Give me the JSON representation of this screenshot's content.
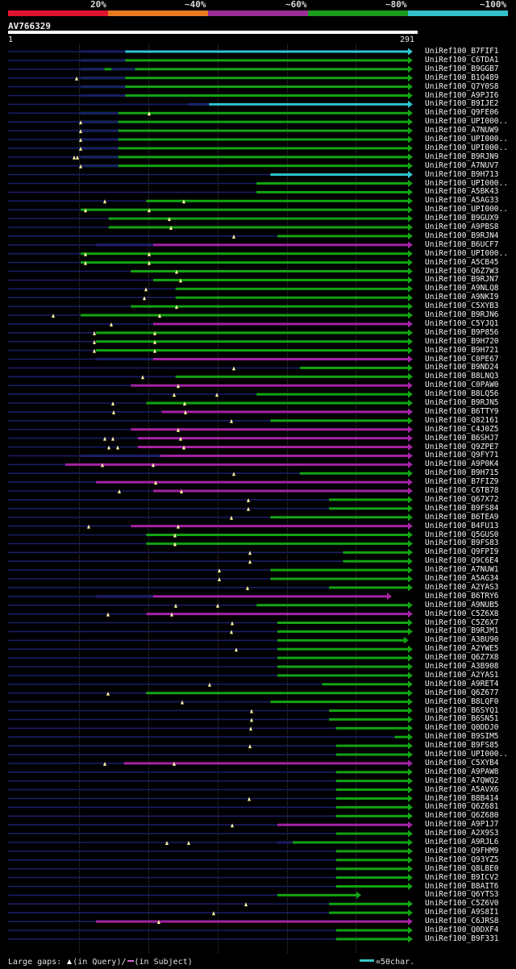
{
  "identity_scale": [
    {
      "label": "20%",
      "color": "#e0142e"
    },
    {
      "label": "~40%",
      "color": "#e87a1f"
    },
    {
      "label": "~60%",
      "color": "#9b2c96"
    },
    {
      "label": "~80%",
      "color": "#1c9a1c"
    },
    {
      "label": "~100%",
      "color": "#32c2c8"
    }
  ],
  "query": {
    "name": "AV766329",
    "start": "1",
    "end": "291",
    "length": 291
  },
  "colors": {
    "cyan": "#2fc4cf",
    "green": "#12a412",
    "magenta": "#a423a4",
    "query_line": "#191d66",
    "marker": "#fff6a0"
  },
  "hits": [
    {
      "label": "UniRef100_B7FIF1",
      "c": "cyan",
      "s": 53,
      "e": 291,
      "g": [
        [
          53,
          85
        ]
      ],
      "m": []
    },
    {
      "label": "UniRef100_C6TDA1",
      "c": "green",
      "s": 53,
      "e": 291,
      "g": [
        [
          53,
          85
        ]
      ],
      "m": []
    },
    {
      "label": "UniRef100_B9GGB7",
      "c": "green",
      "s": 53,
      "e": 291,
      "g": [
        [
          53,
          70
        ],
        [
          75,
          92
        ]
      ],
      "m": []
    },
    {
      "label": "UniRef100_B1Q489",
      "c": "green",
      "s": 53,
      "e": 291,
      "g": [
        [
          53,
          85
        ]
      ],
      "m": [
        95
      ]
    },
    {
      "label": "UniRef100_Q7Y0S8",
      "c": "green",
      "s": 53,
      "e": 291,
      "g": [
        [
          53,
          85
        ]
      ],
      "m": []
    },
    {
      "label": "UniRef100_A9PJI6",
      "c": "green",
      "s": 53,
      "e": 291,
      "g": [
        [
          53,
          85
        ]
      ],
      "m": []
    },
    {
      "label": "UniRef100_B9IJE2",
      "c": "cyan",
      "s": 130,
      "e": 291,
      "g": [
        [
          130,
          145
        ]
      ],
      "m": []
    },
    {
      "label": "UniRef100_Q9FE06",
      "c": "green",
      "s": 53,
      "e": 291,
      "g": [
        [
          53,
          80
        ]
      ],
      "m": [
        185
      ]
    },
    {
      "label": "UniRef100_UPI000..",
      "c": "green",
      "s": 53,
      "e": 291,
      "g": [
        [
          53,
          80
        ]
      ],
      "m": [
        100
      ]
    },
    {
      "label": "UniRef100_A7NUW9",
      "c": "green",
      "s": 53,
      "e": 291,
      "g": [
        [
          53,
          80
        ]
      ],
      "m": [
        100
      ]
    },
    {
      "label": "UniRef100_UPI000..",
      "c": "green",
      "s": 53,
      "e": 291,
      "g": [
        [
          53,
          80
        ]
      ],
      "m": [
        100
      ]
    },
    {
      "label": "UniRef100_UPI000..",
      "c": "green",
      "s": 53,
      "e": 291,
      "g": [
        [
          53,
          80
        ]
      ],
      "m": [
        100
      ]
    },
    {
      "label": "UniRef100_B9RJN9",
      "c": "green",
      "s": 53,
      "e": 291,
      "g": [
        [
          53,
          80
        ]
      ],
      "m": [
        92,
        96
      ]
    },
    {
      "label": "UniRef100_A7NUV7",
      "c": "green",
      "s": 53,
      "e": 291,
      "g": [
        [
          53,
          80
        ]
      ],
      "m": [
        100
      ]
    },
    {
      "label": "UniRef100_B9H713",
      "c": "cyan",
      "s": 189,
      "e": 291,
      "g": [],
      "m": []
    },
    {
      "label": "UniRef100_UPI000..",
      "c": "green",
      "s": 179,
      "e": 291,
      "g": [],
      "m": []
    },
    {
      "label": "UniRef100_A5BK43",
      "c": "green",
      "s": 179,
      "e": 291,
      "g": [],
      "m": []
    },
    {
      "label": "UniRef100_A5AG33",
      "c": "green",
      "s": 100,
      "e": 291,
      "g": [],
      "m": [
        130,
        228
      ]
    },
    {
      "label": "UniRef100_UPI000..",
      "c": "green",
      "s": 53,
      "e": 291,
      "g": [],
      "m": [
        106,
        185
      ]
    },
    {
      "label": "UniRef100_B9GUX9",
      "c": "green",
      "s": 73,
      "e": 291,
      "g": [],
      "m": [
        210
      ]
    },
    {
      "label": "UniRef100_A9PBS8",
      "c": "green",
      "s": 73,
      "e": 291,
      "g": [],
      "m": [
        212
      ]
    },
    {
      "label": "UniRef100_B9RJN4",
      "c": "green",
      "s": 194,
      "e": 291,
      "g": [],
      "m": [
        290
      ]
    },
    {
      "label": "UniRef100_B6UCF7",
      "c": "magenta",
      "s": 64,
      "e": 291,
      "g": [
        [
          64,
          105
        ]
      ],
      "m": []
    },
    {
      "label": "UniRef100_UPI000..",
      "c": "green",
      "s": 53,
      "e": 291,
      "g": [],
      "m": [
        106,
        185
      ]
    },
    {
      "label": "UniRef100_A5CB45",
      "c": "green",
      "s": 53,
      "e": 291,
      "g": [],
      "m": [
        106,
        185
      ]
    },
    {
      "label": "UniRef100_Q6Z7W3",
      "c": "green",
      "s": 89,
      "e": 291,
      "g": [],
      "m": [
        219
      ]
    },
    {
      "label": "UniRef100_B9RJN7",
      "c": "green",
      "s": 105,
      "e": 291,
      "g": [],
      "m": [
        224
      ]
    },
    {
      "label": "UniRef100_A9NLQ8",
      "c": "green",
      "s": 121,
      "e": 291,
      "g": [],
      "m": [
        181
      ]
    },
    {
      "label": "UniRef100_A9NKI9",
      "c": "green",
      "s": 121,
      "e": 291,
      "g": [],
      "m": [
        179
      ]
    },
    {
      "label": "UniRef100_C5XYB3",
      "c": "green",
      "s": 89,
      "e": 291,
      "g": [],
      "m": [
        219
      ]
    },
    {
      "label": "UniRef100_B9RJN6",
      "c": "green",
      "s": 53,
      "e": 291,
      "g": [],
      "m": [
        66,
        198
      ]
    },
    {
      "label": "UniRef100_C5YJQ1",
      "c": "magenta",
      "s": 105,
      "e": 291,
      "g": [],
      "m": [
        138
      ]
    },
    {
      "label": "UniRef100_B9P856",
      "c": "green",
      "s": 64,
      "e": 291,
      "g": [],
      "m": [
        117,
        192
      ]
    },
    {
      "label": "UniRef100_B9H720",
      "c": "green",
      "s": 64,
      "e": 291,
      "g": [],
      "m": [
        117,
        192
      ]
    },
    {
      "label": "UniRef100_B9H721",
      "c": "green",
      "s": 64,
      "e": 291,
      "g": [],
      "m": [
        117,
        192
      ]
    },
    {
      "label": "UniRef100_C0PE67",
      "c": "magenta",
      "s": 64,
      "e": 291,
      "g": [
        [
          64,
          105
        ]
      ],
      "m": []
    },
    {
      "label": "UniRef100_B9ND24",
      "c": "green",
      "s": 210,
      "e": 291,
      "g": [],
      "m": [
        290
      ]
    },
    {
      "label": "UniRef100_B8LNQ3",
      "c": "green",
      "s": 121,
      "e": 291,
      "g": [],
      "m": [
        177
      ]
    },
    {
      "label": "UniRef100_C0PAW0",
      "c": "magenta",
      "s": 89,
      "e": 291,
      "g": [],
      "m": [
        221
      ]
    },
    {
      "label": "UniRef100_B8LQ56",
      "c": "green",
      "s": 179,
      "e": 291,
      "g": [],
      "m": [
        216,
        269
      ]
    },
    {
      "label": "UniRef100_B9RJN5",
      "c": "green",
      "s": 100,
      "e": 291,
      "g": [],
      "m": [
        140,
        229
      ]
    },
    {
      "label": "UniRef100_B6TTY9",
      "c": "magenta",
      "s": 111,
      "e": 291,
      "g": [],
      "m": [
        141,
        230
      ]
    },
    {
      "label": "UniRef100_Q82161",
      "c": "green",
      "s": 189,
      "e": 291,
      "g": [],
      "m": [
        287
      ]
    },
    {
      "label": "UniRef100_C4J0Z5",
      "c": "magenta",
      "s": 89,
      "e": 291,
      "g": [],
      "m": [
        221
      ]
    },
    {
      "label": "UniRef100_B6SHJ7",
      "c": "magenta",
      "s": 94,
      "e": 291,
      "g": [],
      "m": [
        130,
        140,
        224
      ]
    },
    {
      "label": "UniRef100_Q9ZPE7",
      "c": "magenta",
      "s": 94,
      "e": 291,
      "g": [],
      "m": [
        135,
        146,
        228
      ]
    },
    {
      "label": "UniRef100_Q9FY71",
      "c": "magenta",
      "s": 53,
      "e": 291,
      "g": [
        [
          53,
          110
        ]
      ],
      "m": []
    },
    {
      "label": "UniRef100_A9P0K4",
      "c": "magenta",
      "s": 42,
      "e": 291,
      "g": [],
      "m": [
        127,
        190
      ]
    },
    {
      "label": "UniRef100_B9H715",
      "c": "green",
      "s": 210,
      "e": 291,
      "g": [],
      "m": [
        290
      ]
    },
    {
      "label": "UniRef100_B7FIZ9",
      "c": "magenta",
      "s": 64,
      "e": 291,
      "g": [],
      "m": [
        193
      ]
    },
    {
      "label": "UniRef100_C6TB78",
      "c": "magenta",
      "s": 105,
      "e": 291,
      "g": [],
      "m": [
        148,
        225
      ]
    },
    {
      "label": "UniRef100_Q67X72",
      "c": "green",
      "s": 231,
      "e": 291,
      "g": [],
      "m": [
        308
      ]
    },
    {
      "label": "UniRef100_B9FS84",
      "c": "green",
      "s": 231,
      "e": 291,
      "g": [],
      "m": [
        308
      ]
    },
    {
      "label": "UniRef100_B6TEA9",
      "c": "green",
      "s": 189,
      "e": 291,
      "g": [],
      "m": [
        287
      ]
    },
    {
      "label": "UniRef100_B4FU13",
      "c": "magenta",
      "s": 89,
      "e": 291,
      "g": [],
      "m": [
        110,
        221
      ]
    },
    {
      "label": "UniRef100_Q5GUS0",
      "c": "green",
      "s": 100,
      "e": 291,
      "g": [],
      "m": [
        217
      ]
    },
    {
      "label": "UniRef100_B9FS83",
      "c": "green",
      "s": 100,
      "e": 291,
      "g": [],
      "m": [
        217
      ]
    },
    {
      "label": "UniRef100_Q9FPI9",
      "c": "green",
      "s": 241,
      "e": 291,
      "g": [],
      "m": [
        310
      ]
    },
    {
      "label": "UniRef100_Q9C6E4",
      "c": "green",
      "s": 241,
      "e": 291,
      "g": [],
      "m": [
        310
      ]
    },
    {
      "label": "UniRef100_A7NUW1",
      "c": "green",
      "s": 189,
      "e": 291,
      "g": [],
      "m": [
        272
      ]
    },
    {
      "label": "UniRef100_A5AG34",
      "c": "green",
      "s": 189,
      "e": 291,
      "g": [],
      "m": [
        272
      ]
    },
    {
      "label": "UniRef100_A2YAS3",
      "c": "green",
      "s": 231,
      "e": 291,
      "g": [],
      "m": [
        307
      ]
    },
    {
      "label": "UniRef100_B6TRY6",
      "c": "magenta",
      "s": 64,
      "e": 276,
      "g": [
        [
          64,
          105
        ]
      ],
      "m": []
    },
    {
      "label": "UniRef100_A9NUB5",
      "c": "green",
      "s": 179,
      "e": 291,
      "g": [],
      "m": [
        218,
        270
      ]
    },
    {
      "label": "UniRef100_C5Z6X8",
      "c": "magenta",
      "s": 100,
      "e": 291,
      "g": [],
      "m": [
        134,
        213
      ]
    },
    {
      "label": "UniRef100_C5Z6X7",
      "c": "green",
      "s": 194,
      "e": 291,
      "g": [],
      "m": [
        288
      ]
    },
    {
      "label": "UniRef100_B9RJM1",
      "c": "green",
      "s": 194,
      "e": 291,
      "g": [],
      "m": [
        287
      ]
    },
    {
      "label": "UniRef100_A3BU90",
      "c": "green",
      "s": 194,
      "e": 288,
      "g": [],
      "m": []
    },
    {
      "label": "UniRef100_A2YWE5",
      "c": "green",
      "s": 194,
      "e": 291,
      "g": [],
      "m": [
        293
      ]
    },
    {
      "label": "UniRef100_Q6Z7X8",
      "c": "green",
      "s": 194,
      "e": 291,
      "g": [],
      "m": []
    },
    {
      "label": "UniRef100_A3B908",
      "c": "green",
      "s": 194,
      "e": 291,
      "g": [],
      "m": []
    },
    {
      "label": "UniRef100_A2YAS1",
      "c": "green",
      "s": 194,
      "e": 291,
      "g": [],
      "m": []
    },
    {
      "label": "UniRef100_A9RET4",
      "c": "green",
      "s": 226,
      "e": 291,
      "g": [],
      "m": [
        260
      ]
    },
    {
      "label": "UniRef100_Q6Z677",
      "c": "green",
      "s": 100,
      "e": 291,
      "g": [],
      "m": [
        134
      ]
    },
    {
      "label": "UniRef100_B8LQF0",
      "c": "green",
      "s": 189,
      "e": 291,
      "g": [],
      "m": [
        226
      ]
    },
    {
      "label": "UniRef100_B6SYQ1",
      "c": "green",
      "s": 231,
      "e": 291,
      "g": [],
      "m": [
        312
      ]
    },
    {
      "label": "UniRef100_B6SN51",
      "c": "green",
      "s": 231,
      "e": 291,
      "g": [],
      "m": [
        312
      ]
    },
    {
      "label": "UniRef100_Q0DDJ0",
      "c": "green",
      "s": 236,
      "e": 291,
      "g": [],
      "m": [
        311
      ]
    },
    {
      "label": "UniRef100_B9SIM5",
      "c": "green",
      "s": 278,
      "e": 291,
      "g": [],
      "m": []
    },
    {
      "label": "UniRef100_B9FS85",
      "c": "green",
      "s": 236,
      "e": 291,
      "g": [],
      "m": [
        310
      ]
    },
    {
      "label": "UniRef100_UPI000..",
      "c": "green",
      "s": 236,
      "e": 291,
      "g": [],
      "m": []
    },
    {
      "label": "UniRef100_C5XYB4",
      "c": "magenta",
      "s": 84,
      "e": 291,
      "g": [],
      "m": [
        130,
        216
      ]
    },
    {
      "label": "UniRef100_A9PAW8",
      "c": "green",
      "s": 236,
      "e": 291,
      "g": [],
      "m": []
    },
    {
      "label": "UniRef100_A7QWQ2",
      "c": "green",
      "s": 236,
      "e": 291,
      "g": [],
      "m": []
    },
    {
      "label": "UniRef100_A5AVX6",
      "c": "green",
      "s": 236,
      "e": 291,
      "g": [],
      "m": []
    },
    {
      "label": "UniRef100_B8B414",
      "c": "green",
      "s": 236,
      "e": 291,
      "g": [],
      "m": [
        309
      ]
    },
    {
      "label": "UniRef100_Q6Z681",
      "c": "green",
      "s": 236,
      "e": 291,
      "g": [],
      "m": []
    },
    {
      "label": "UniRef100_Q6Z680",
      "c": "green",
      "s": 236,
      "e": 291,
      "g": [],
      "m": []
    },
    {
      "label": "UniRef100_A9P1J7",
      "c": "magenta",
      "s": 194,
      "e": 291,
      "g": [],
      "m": [
        288
      ]
    },
    {
      "label": "UniRef100_A2X9S3",
      "c": "green",
      "s": 236,
      "e": 291,
      "g": [],
      "m": []
    },
    {
      "label": "UniRef100_A9RJL6",
      "c": "green",
      "s": 194,
      "e": 291,
      "g": [
        [
          194,
          205
        ]
      ],
      "m": [
        207,
        234
      ]
    },
    {
      "label": "UniRef100_Q9FHM9",
      "c": "green",
      "s": 236,
      "e": 291,
      "g": [],
      "m": []
    },
    {
      "label": "UniRef100_Q93YZ5",
      "c": "green",
      "s": 236,
      "e": 291,
      "g": [],
      "m": []
    },
    {
      "label": "UniRef100_Q8LBE0",
      "c": "green",
      "s": 236,
      "e": 291,
      "g": [],
      "m": []
    },
    {
      "label": "UniRef100_B9ICV2",
      "c": "green",
      "s": 236,
      "e": 291,
      "g": [],
      "m": []
    },
    {
      "label": "UniRef100_B8AIT6",
      "c": "green",
      "s": 236,
      "e": 291,
      "g": [],
      "m": []
    },
    {
      "label": "UniRef100_Q6YTS3",
      "c": "green",
      "s": 194,
      "e": 254,
      "g": [],
      "m": []
    },
    {
      "label": "UniRef100_C5Z6V0",
      "c": "green",
      "s": 231,
      "e": 291,
      "g": [],
      "m": [
        305
      ]
    },
    {
      "label": "UniRef100_A9S8I1",
      "c": "green",
      "s": 231,
      "e": 291,
      "g": [],
      "m": [
        265
      ]
    },
    {
      "label": "UniRef100_C6JRS8",
      "c": "magenta",
      "s": 64,
      "e": 291,
      "g": [],
      "m": [
        197
      ]
    },
    {
      "label": "UniRef100_Q0DXF4",
      "c": "green",
      "s": 236,
      "e": 291,
      "g": [],
      "m": []
    },
    {
      "label": "UniRef100_B9F331",
      "c": "green",
      "s": 236,
      "e": 291,
      "g": [],
      "m": []
    }
  ],
  "footer": {
    "gaps_prefix": "Large gaps:",
    "gaps_query": "(in Query)/",
    "gaps_subject": "(in Subject)",
    "scale_label": "=50char."
  }
}
